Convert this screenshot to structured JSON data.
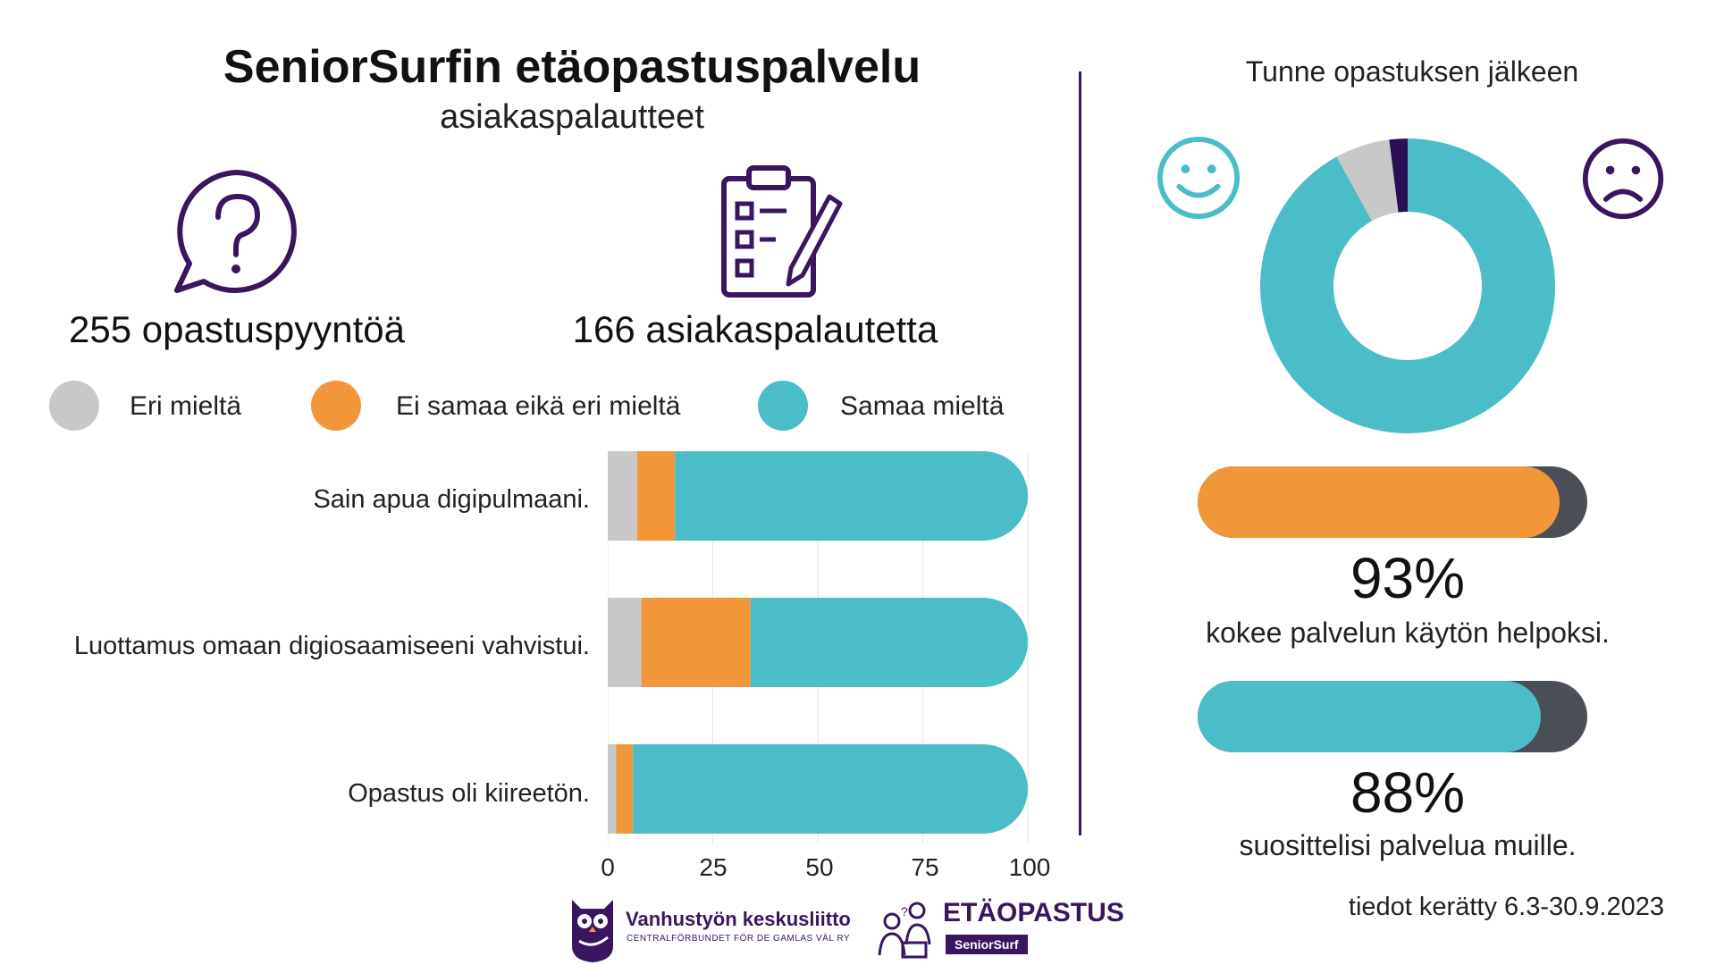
{
  "header": {
    "title": "SeniorSurfin etäopastuspalvelu",
    "subtitle": "asiakaspalautteet"
  },
  "stats": {
    "requests": "255 opastuspyyntöä",
    "feedbacks": "166 asiakaspalautetta"
  },
  "legend": [
    {
      "label": "Eri mieltä",
      "color": "#c8c8c8"
    },
    {
      "label": "Ei samaa eikä eri mieltä",
      "color": "#f2963a"
    },
    {
      "label": "Samaa mieltä",
      "color": "#4bbdc9"
    }
  ],
  "chart_data": [
    {
      "type": "bar",
      "orientation": "horizontal",
      "stacked": true,
      "categories": [
        "Sain apua digipulmaani.",
        "Luottamus omaan digiosaamiseeni vahvistui.",
        "Opastus oli kiireetön."
      ],
      "series": [
        {
          "name": "Eri mieltä",
          "color": "#c8c8c8",
          "values": [
            7,
            8,
            2
          ]
        },
        {
          "name": "Ei samaa eikä eri mieltä",
          "color": "#f2963a",
          "values": [
            9,
            26,
            4
          ]
        },
        {
          "name": "Samaa mieltä",
          "color": "#4bbdc9",
          "values": [
            84,
            66,
            94
          ]
        }
      ],
      "xlim": [
        0,
        100
      ],
      "xticks": [
        "0",
        "25",
        "50",
        "75",
        "100"
      ]
    },
    {
      "type": "pie",
      "donut": true,
      "title": "Tunne opastuksen jälkeen",
      "slices": [
        {
          "name": "positive",
          "value": 92,
          "color": "#4bbdc9"
        },
        {
          "name": "neutral",
          "value": 6,
          "color": "#c8c8c8"
        },
        {
          "name": "negative",
          "value": 2,
          "color": "#2a0f55"
        }
      ]
    },
    {
      "type": "bar",
      "title": "kokee palvelun käytön helpoksi.",
      "value": 93,
      "max": 100,
      "fill_color": "#f2963a",
      "track_color": "#4a4f57",
      "label": "93%"
    },
    {
      "type": "bar",
      "title": "suosittelisi palvelua muille.",
      "value": 88,
      "max": 100,
      "fill_color": "#4bbdc9",
      "track_color": "#4a4f57",
      "label": "88%"
    }
  ],
  "footer": {
    "date": "tiedot kerätty 6.3-30.9.2023",
    "logo1_name": "Vanhustyön keskusliitto",
    "logo1_sub": "CENTRALFÖRBUNDET FÖR DE GAMLAS VÄL RY",
    "logo2_name": "ETÄOPASTUS",
    "logo2_badge": "SeniorSurf"
  },
  "colors": {
    "accent_purple": "#3a1560",
    "grey": "#c8c8c8",
    "orange": "#f2963a",
    "teal": "#4bbdc9",
    "dark": "#4a4f57"
  }
}
